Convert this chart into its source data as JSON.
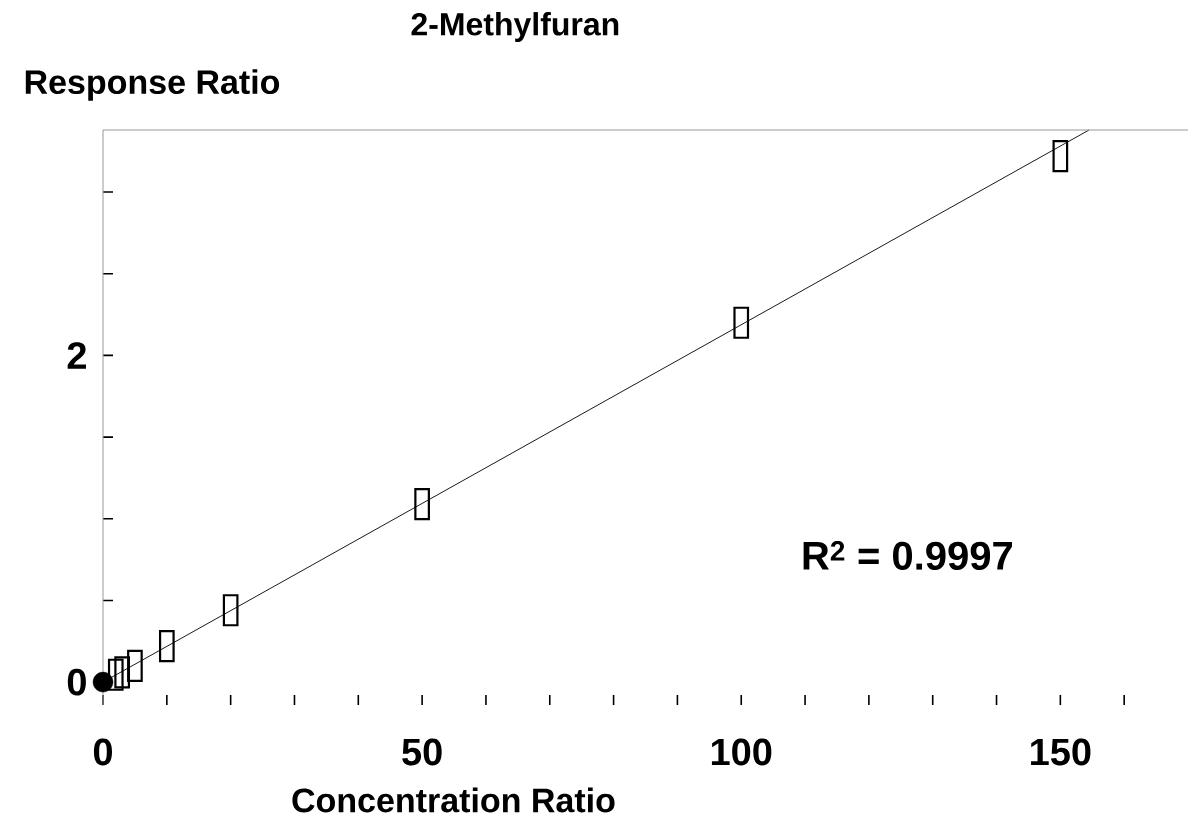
{
  "chart_data": {
    "type": "scatter",
    "title": "2-Methylfuran",
    "xlabel": "Concentration Ratio",
    "ylabel": "Response Ratio",
    "xlim": [
      0,
      170
    ],
    "ylim": [
      -0.14,
      3.38
    ],
    "xticks": [
      0,
      {
        "value": 10,
        "label": null
      },
      {
        "value": 20,
        "label": null
      },
      {
        "value": 30,
        "label": null
      },
      {
        "value": 40,
        "label": null
      },
      50,
      {
        "value": 60,
        "label": null
      },
      {
        "value": 70,
        "label": null
      },
      {
        "value": 80,
        "label": null
      },
      {
        "value": 90,
        "label": null
      },
      100,
      {
        "value": 110,
        "label": null
      },
      {
        "value": 120,
        "label": null
      },
      {
        "value": 130,
        "label": null
      },
      {
        "value": 140,
        "label": null
      },
      150,
      {
        "value": 160,
        "label": null
      }
    ],
    "yticks": [
      0,
      {
        "value": 0.5,
        "label": null
      },
      {
        "value": 1,
        "label": null
      },
      {
        "value": 1.5,
        "label": null
      },
      2,
      {
        "value": 2.5,
        "label": null
      },
      {
        "value": 3,
        "label": null
      }
    ],
    "grid": false,
    "annotations": [
      "R$^{2}$ = 0.9997"
    ],
    "series": [
      {
        "type": "line",
        "color": "#000000",
        "marker": "none",
        "x": [
          0,
          154.5
        ],
        "values": [
          0,
          3.38
        ]
      },
      {
        "color": "#000000",
        "marker": "square",
        "x": [
          2,
          3,
          5,
          10,
          20,
          50,
          100,
          150
        ],
        "values": [
          0.045,
          0.06,
          0.1,
          0.22,
          0.44,
          1.09,
          2.2,
          3.22
        ]
      },
      {
        "color": "#000000",
        "marker": "circle",
        "x": [
          0
        ],
        "values": [
          0
        ]
      }
    ]
  }
}
